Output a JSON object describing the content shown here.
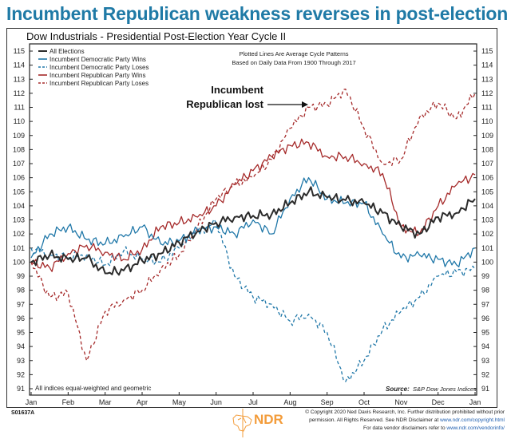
{
  "headline": "Incumbent Republican weakness reverses in post-election year",
  "footer": {
    "chart_id": "S01637A",
    "logo_text": "NDR",
    "copyright_line1": "© Copyright 2020 Ned Davis Research, Inc. Further distribution prohibited without prior",
    "copyright_line2_pre": "permission. All Rights Reserved. See NDR Disclaimer at ",
    "copyright_line2_link": "www.ndr.com/copyright.html",
    "copyright_line3_pre": "For data vendor disclaimers refer to ",
    "copyright_line3_link": "www.ndr.com/vendorinfo/"
  },
  "chart_data": {
    "type": "line",
    "title": "Dow Industrials - Presidential Post-Election Year Cycle II",
    "note_top": [
      "Plotted Lines Are Average Cycle Patterns",
      "Based on Daily Data From 1900 Through 2017"
    ],
    "note_bottom": "All indices equal-weighted and geometric",
    "source_label": "Source:",
    "source_value": "S&P Dow Jones Indices",
    "annotation": [
      "Incumbent",
      "Republican lost"
    ],
    "xlabel": "",
    "ylabel": "",
    "x_tick_labels": [
      "Jan",
      "Feb",
      "Mar",
      "Apr",
      "May",
      "Jun",
      "Jul",
      "Aug",
      "Sep",
      "Oct",
      "Nov",
      "Dec",
      "Jan"
    ],
    "y_ticks": [
      91,
      92,
      93,
      94,
      95,
      96,
      97,
      98,
      99,
      100,
      101,
      102,
      103,
      104,
      105,
      106,
      107,
      108,
      109,
      110,
      111,
      112,
      113,
      114,
      115
    ],
    "ylim": [
      91,
      115
    ],
    "xlim": [
      0,
      12
    ],
    "legend_position": "top-left",
    "x": [
      0,
      0.5,
      1,
      1.5,
      2,
      2.5,
      3,
      3.5,
      4,
      4.5,
      5,
      5.5,
      6,
      6.5,
      7,
      7.5,
      8,
      8.5,
      9,
      9.5,
      10,
      10.5,
      11,
      11.5,
      12
    ],
    "series": [
      {
        "name": "All Elections",
        "color": "#2b2b2b",
        "dash": false,
        "bold": true,
        "values": [
          100.0,
          100.5,
          100.2,
          100.3,
          99.2,
          99.4,
          100.1,
          100.6,
          101.4,
          102.2,
          102.8,
          103.2,
          103.3,
          103.4,
          104.2,
          105.0,
          104.6,
          104.4,
          104.2,
          103.5,
          102.5,
          102.0,
          103.2,
          103.5,
          104.5
        ]
      },
      {
        "name": "Incumbent Democratic Party Wins",
        "color": "#1f77a8",
        "dash": false,
        "bold": false,
        "values": [
          100.3,
          102.0,
          102.5,
          101.6,
          101.3,
          101.8,
          102.5,
          101.3,
          101.5,
          102.3,
          102.5,
          102.0,
          103.0,
          102.0,
          104.5,
          106.0,
          104.5,
          104.2,
          104.2,
          102.0,
          100.3,
          100.5,
          100.2,
          99.8,
          101.0
        ]
      },
      {
        "name": "Incumbent Democratic Party Loses",
        "color": "#1f77a8",
        "dash": true,
        "bold": false,
        "values": [
          101.0,
          100.5,
          100.4,
          100.5,
          99.8,
          100.8,
          100.2,
          100.0,
          101.0,
          102.2,
          102.8,
          99.0,
          97.5,
          97.0,
          95.8,
          96.3,
          95.0,
          91.5,
          93.0,
          95.2,
          96.5,
          97.5,
          99.0,
          99.3,
          99.5
        ]
      },
      {
        "name": "Incumbent Republican Party Wins",
        "color": "#a52a2a",
        "dash": false,
        "bold": false,
        "values": [
          100.0,
          99.6,
          100.6,
          101.2,
          100.7,
          100.2,
          100.9,
          102.5,
          102.8,
          103.2,
          104.0,
          105.5,
          106.5,
          107.5,
          108.3,
          108.5,
          107.5,
          107.5,
          107.0,
          106.3,
          102.5,
          102.0,
          104.0,
          105.5,
          106.2
        ]
      },
      {
        "name": "Incumbent Republican Party Loses",
        "color": "#a52a2a",
        "dash": true,
        "bold": false,
        "values": [
          100.0,
          97.5,
          97.8,
          93.0,
          96.5,
          97.3,
          98.0,
          99.5,
          100.5,
          102.5,
          104.5,
          105.5,
          106.0,
          107.3,
          109.5,
          111.0,
          111.2,
          112.3,
          109.5,
          107.0,
          107.3,
          110.3,
          111.3,
          110.2,
          112.0
        ]
      }
    ]
  }
}
